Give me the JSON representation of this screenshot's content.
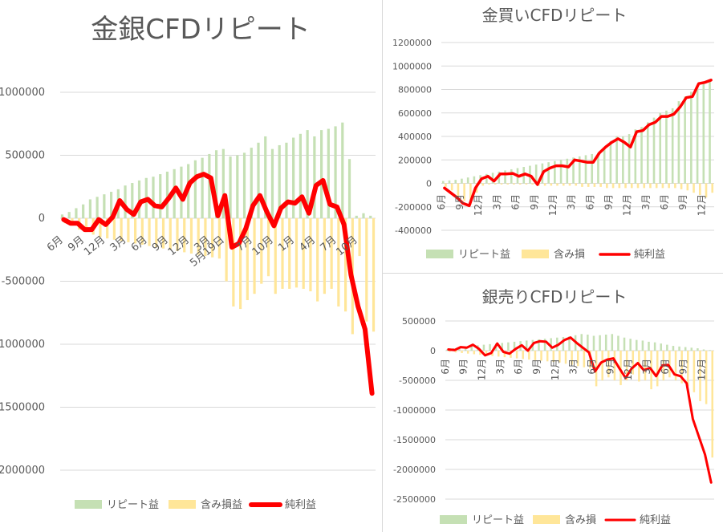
{
  "colors": {
    "repeat": "#c5e0b4",
    "unrealized": "#ffe699",
    "net": "#ff0000",
    "grid": "#d9d9d9",
    "text": "#595959"
  },
  "chart_data": [
    {
      "id": "main",
      "type": "bar",
      "title": "金銀CFDリピート",
      "ylim": [
        -2000000,
        1000000
      ],
      "yticks": [
        1000000,
        500000,
        0,
        -500000,
        -1000000,
        -1500000,
        -2000000
      ],
      "ytick_labels": [
        "1000000",
        "500000",
        "0",
        "-500000",
        "-1000000",
        "-1500000",
        "-2000000"
      ],
      "xtick_labels": [
        "6月",
        "9月",
        "12月",
        "3月",
        "6月",
        "9月",
        "12月",
        "3月",
        "5月19日",
        "7月",
        "10月",
        "1月",
        "4月",
        "7月",
        "10月"
      ],
      "xtick_index": [
        0,
        3,
        6,
        9,
        12,
        15,
        18,
        21,
        23,
        27,
        30,
        33,
        36,
        39,
        42
      ],
      "series": [
        {
          "name": "リピート益",
          "type": "bar",
          "values": [
            30000,
            50000,
            80000,
            110000,
            150000,
            170000,
            190000,
            210000,
            230000,
            260000,
            280000,
            300000,
            320000,
            330000,
            350000,
            370000,
            390000,
            410000,
            430000,
            460000,
            480000,
            510000,
            540000,
            550000,
            490000,
            500000,
            520000,
            560000,
            600000,
            650000,
            550000,
            580000,
            600000,
            640000,
            670000,
            700000,
            650000,
            700000,
            710000,
            730000,
            760000,
            470000,
            20000,
            40000,
            20000
          ]
        },
        {
          "name": "含み損益",
          "type": "bar",
          "values": [
            -40000,
            -60000,
            -90000,
            -110000,
            -130000,
            -150000,
            -160000,
            -170000,
            -180000,
            -190000,
            -200000,
            -210000,
            -220000,
            -230000,
            -240000,
            -250000,
            -260000,
            -270000,
            -280000,
            -290000,
            -300000,
            -310000,
            -320000,
            -500000,
            -700000,
            -720000,
            -650000,
            -600000,
            -520000,
            -460000,
            -600000,
            -560000,
            -560000,
            -550000,
            -560000,
            -580000,
            -660000,
            -600000,
            -560000,
            -700000,
            -740000,
            -920000,
            -300000,
            -820000,
            -900000
          ]
        },
        {
          "name": "純利益",
          "type": "line",
          "values": [
            -10000,
            -40000,
            -40000,
            -90000,
            -90000,
            -10000,
            -50000,
            10000,
            140000,
            70000,
            30000,
            130000,
            150000,
            100000,
            90000,
            160000,
            240000,
            150000,
            280000,
            330000,
            350000,
            320000,
            20000,
            180000,
            -230000,
            -200000,
            -80000,
            100000,
            180000,
            50000,
            -60000,
            80000,
            130000,
            120000,
            170000,
            40000,
            260000,
            300000,
            110000,
            90000,
            -50000,
            -450000,
            -700000,
            -880000,
            -1390000
          ]
        }
      ]
    },
    {
      "id": "gold",
      "type": "bar",
      "title": "金買いCFDリピート",
      "ylim": [
        -400000,
        1200000
      ],
      "yticks": [
        1200000,
        1000000,
        800000,
        600000,
        400000,
        200000,
        0,
        -200000,
        -400000
      ],
      "ytick_labels": [
        "1200000",
        "1000000",
        "800000",
        "600000",
        "400000",
        "200000",
        "0",
        "-200000",
        "-400000"
      ],
      "xtick_labels": [
        "6月",
        "9月",
        "12月",
        "3月",
        "6月",
        "9月",
        "12月",
        "3月",
        "6月",
        "9月",
        "12月",
        "3月",
        "6月",
        "9月",
        "12月"
      ],
      "xtick_index": [
        0,
        3,
        6,
        9,
        12,
        15,
        18,
        21,
        24,
        27,
        30,
        33,
        36,
        39,
        42
      ],
      "series": [
        {
          "name": "リピート益",
          "type": "bar",
          "values": [
            20000,
            25000,
            30000,
            40000,
            50000,
            60000,
            70000,
            80000,
            90000,
            100000,
            110000,
            120000,
            130000,
            140000,
            150000,
            160000,
            170000,
            180000,
            190000,
            200000,
            210000,
            220000,
            230000,
            240000,
            250000,
            260000,
            300000,
            360000,
            400000,
            400000,
            420000,
            460000,
            480000,
            520000,
            560000,
            600000,
            620000,
            640000,
            700000,
            740000,
            780000,
            820000,
            860000,
            880000
          ]
        },
        {
          "name": "含み損",
          "type": "bar",
          "values": [
            -30000,
            -60000,
            -120000,
            -150000,
            -180000,
            -80000,
            -20000,
            -10000,
            -10000,
            -10000,
            -10000,
            -10000,
            -10000,
            -10000,
            -10000,
            -20000,
            -20000,
            -20000,
            -20000,
            -20000,
            -20000,
            -20000,
            -30000,
            -30000,
            -30000,
            -30000,
            -40000,
            -40000,
            -40000,
            -40000,
            -40000,
            -40000,
            -40000,
            -40000,
            -40000,
            -40000,
            -40000,
            -40000,
            -50000,
            -60000,
            -80000,
            -100000,
            -120000,
            -80000
          ]
        },
        {
          "name": "純利益",
          "type": "line",
          "values": [
            -40000,
            -80000,
            -120000,
            -170000,
            -190000,
            -40000,
            40000,
            60000,
            20000,
            80000,
            80000,
            85000,
            60000,
            80000,
            60000,
            -10000,
            100000,
            130000,
            150000,
            150000,
            140000,
            200000,
            190000,
            180000,
            180000,
            260000,
            310000,
            350000,
            380000,
            350000,
            310000,
            440000,
            450000,
            500000,
            520000,
            570000,
            570000,
            590000,
            650000,
            730000,
            740000,
            850000,
            860000,
            880000
          ]
        }
      ]
    },
    {
      "id": "silver",
      "type": "bar",
      "title": "銀売りCFDリピート",
      "ylim": [
        -2500000,
        500000
      ],
      "yticks": [
        500000,
        0,
        -500000,
        -1000000,
        -1500000,
        -2000000,
        -2500000
      ],
      "ytick_labels": [
        "500000",
        "0",
        "-500000",
        "-1000000",
        "-1500000",
        "-2000000",
        "-2500000"
      ],
      "xtick_labels": [
        "6月",
        "9月",
        "12月",
        "3月",
        "6月",
        "9月",
        "12月",
        "3月",
        "6月",
        "9月",
        "12月",
        "3月",
        "6月",
        "9月",
        "12月"
      ],
      "xtick_index": [
        0,
        3,
        6,
        9,
        12,
        15,
        18,
        21,
        24,
        27,
        30,
        33,
        36,
        39,
        42
      ],
      "series": [
        {
          "name": "リピート益",
          "type": "bar",
          "values": [
            20000,
            40000,
            60000,
            70000,
            80000,
            90000,
            100000,
            110000,
            120000,
            130000,
            140000,
            150000,
            160000,
            170000,
            180000,
            190000,
            200000,
            210000,
            220000,
            230000,
            240000,
            260000,
            280000,
            270000,
            250000,
            260000,
            270000,
            280000,
            250000,
            220000,
            200000,
            180000,
            170000,
            150000,
            140000,
            120000,
            100000,
            80000,
            70000,
            60000,
            50000,
            40000,
            20000,
            10000
          ]
        },
        {
          "name": "含み損",
          "type": "bar",
          "values": [
            -20000,
            -30000,
            -40000,
            -50000,
            -60000,
            -70000,
            -80000,
            -90000,
            -100000,
            -110000,
            -120000,
            -130000,
            -140000,
            -150000,
            -160000,
            -170000,
            -180000,
            -190000,
            -200000,
            -220000,
            -240000,
            -260000,
            -280000,
            -300000,
            -600000,
            -500000,
            -450000,
            -500000,
            -580000,
            -500000,
            -400000,
            -520000,
            -500000,
            -650000,
            -600000,
            -500000,
            -450000,
            -500000,
            -550000,
            -600000,
            -700000,
            -850000,
            -900000,
            -1800000
          ]
        },
        {
          "name": "純利益",
          "type": "line",
          "values": [
            20000,
            10000,
            60000,
            50000,
            100000,
            30000,
            -80000,
            -40000,
            120000,
            -20000,
            -50000,
            30000,
            90000,
            0,
            130000,
            160000,
            150000,
            50000,
            100000,
            180000,
            220000,
            130000,
            50000,
            -30000,
            -350000,
            -200000,
            -150000,
            -130000,
            -300000,
            -460000,
            -300000,
            -210000,
            -330000,
            -290000,
            -430000,
            -250000,
            -240000,
            -400000,
            -430000,
            -550000,
            -1150000,
            -1450000,
            -1750000,
            -2220000
          ]
        }
      ]
    }
  ]
}
